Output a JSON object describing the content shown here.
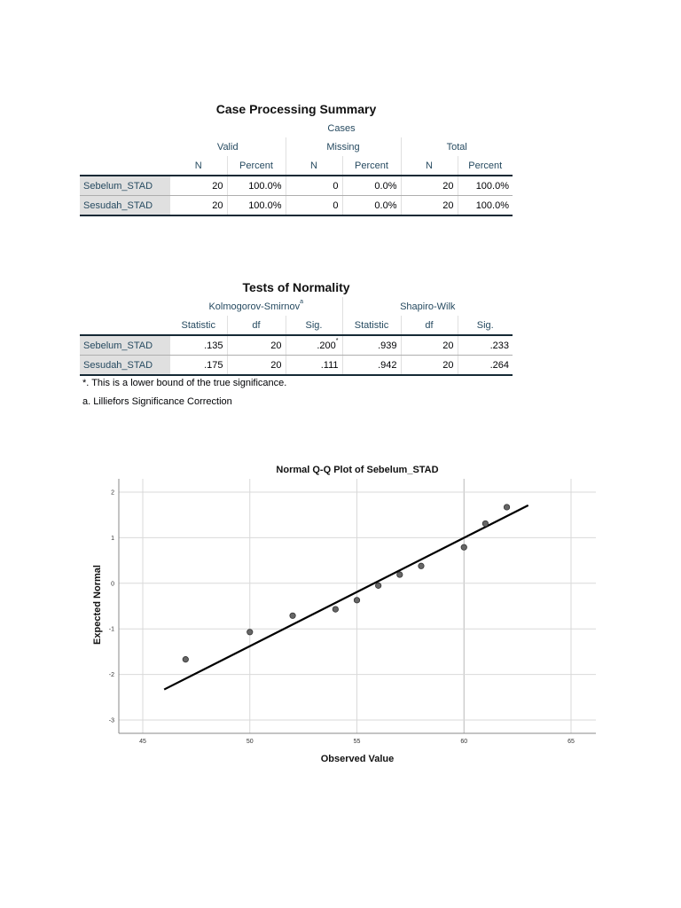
{
  "case_summary": {
    "title": "Case Processing Summary",
    "group_header": "Cases",
    "subgroups": [
      "Valid",
      "Missing",
      "Total"
    ],
    "columns": [
      "N",
      "Percent",
      "N",
      "Percent",
      "N",
      "Percent"
    ],
    "rows": [
      {
        "label": "Sebelum_STAD",
        "values": [
          "20",
          "100.0%",
          "0",
          "0.0%",
          "20",
          "100.0%"
        ]
      },
      {
        "label": "Sesudah_STAD",
        "values": [
          "20",
          "100.0%",
          "0",
          "0.0%",
          "20",
          "100.0%"
        ]
      }
    ]
  },
  "normality": {
    "title": "Tests of Normality",
    "groups": [
      {
        "label": "Kolmogorov-Smirnov",
        "sup": "a"
      },
      {
        "label": "Shapiro-Wilk",
        "sup": ""
      }
    ],
    "columns": [
      "Statistic",
      "df",
      "Sig.",
      "Statistic",
      "df",
      "Sig."
    ],
    "rows": [
      {
        "label": "Sebelum_STAD",
        "values": [
          ".135",
          "20",
          ".200",
          ".939",
          "20",
          ".233"
        ],
        "sig_sup": "*"
      },
      {
        "label": "Sesudah_STAD",
        "values": [
          ".175",
          "20",
          ".111",
          ".942",
          "20",
          ".264"
        ],
        "sig_sup": ""
      }
    ],
    "footnotes": [
      "*. This is a lower bound of the true significance.",
      "a. Lilliefors Significance Correction"
    ]
  },
  "chart_data": {
    "type": "scatter",
    "title": "Normal Q-Q Plot of Sebelum_STAD",
    "xlabel": "Observed Value",
    "ylabel": "Expected Normal",
    "xlim": [
      44,
      66
    ],
    "ylim": [
      -3.2,
      2.2
    ],
    "xticks": [
      45,
      50,
      55,
      60,
      65
    ],
    "yticks": [
      2,
      1,
      0,
      -1,
      -2,
      -3
    ],
    "grid": true,
    "legend": null,
    "points": [
      {
        "x": 47,
        "y": -1.67
      },
      {
        "x": 50,
        "y": -1.07
      },
      {
        "x": 52,
        "y": -0.71
      },
      {
        "x": 54,
        "y": -0.57
      },
      {
        "x": 55,
        "y": -0.37
      },
      {
        "x": 56,
        "y": -0.05
      },
      {
        "x": 57,
        "y": 0.19
      },
      {
        "x": 58,
        "y": 0.38
      },
      {
        "x": 60,
        "y": 0.79
      },
      {
        "x": 61,
        "y": 1.31
      },
      {
        "x": 62,
        "y": 1.67
      }
    ],
    "reference_line": {
      "x1": 46,
      "y1": -2.33,
      "x2": 63,
      "y2": 1.71
    },
    "colors": {
      "point_fill": "#666666",
      "point_stroke": "#333333",
      "line": "#000000",
      "grid": "#d9d9d9"
    }
  }
}
